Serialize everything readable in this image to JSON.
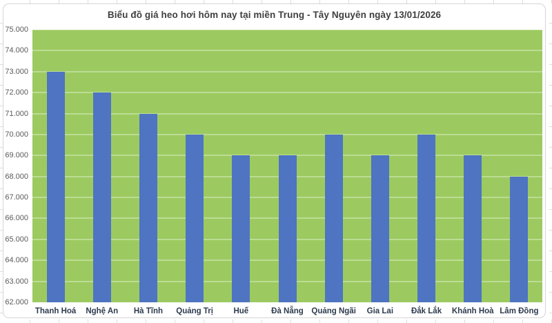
{
  "chart_data": {
    "type": "bar",
    "title": "Biểu đồ giá heo hơi hôm nay tại miền Trung - Tây Nguyên ngày 13/01/2026",
    "categories": [
      "Thanh Hoá",
      "Nghệ An",
      "Hà Tĩnh",
      "Quảng Trị",
      "Huế",
      "Đà Nẵng",
      "Quảng Ngãi",
      "Gia Lai",
      "Đắk Lắk",
      "Khánh Hoà",
      "Lâm Đồng"
    ],
    "values": [
      73000,
      72000,
      71000,
      70000,
      69000,
      69000,
      70000,
      69000,
      70000,
      69000,
      68000
    ],
    "xlabel": "",
    "ylabel": "",
    "ylim": [
      62000,
      75000
    ],
    "ytick_step": 1000,
    "ytick_labels": [
      "75.000",
      "74.000",
      "73.000",
      "72.000",
      "71.000",
      "70.000",
      "69.000",
      "68.000",
      "67.000",
      "66.000",
      "65.000",
      "64.000",
      "63.000",
      "62.000"
    ],
    "grid": true,
    "legend": false,
    "colors": {
      "bar": "#4e74c2",
      "plot_background": "#9cca60",
      "gridline": "rgba(255,255,255,0.65)",
      "title_text": "#3f3f3f",
      "x_label_text": "#2e3b4e",
      "y_label_text": "#595959",
      "chart_border": "#d5d5d5"
    }
  }
}
